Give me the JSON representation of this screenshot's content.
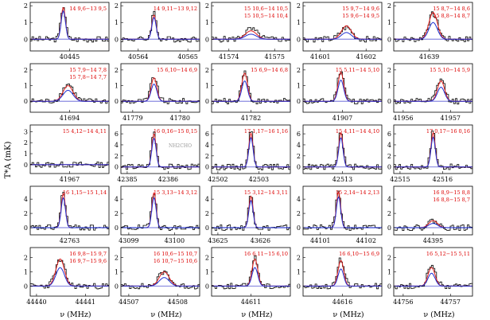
{
  "figure": {
    "ylabel": "T*A (mK)",
    "xlabel": "ν (MHz)"
  },
  "colors": {
    "observed": "#000000",
    "model_red": "#e02020",
    "model_blue": "#2030d0",
    "baseline": "#8a8ae0",
    "marker_gray": "#999999",
    "label_red": "#dd0000"
  },
  "chart_data": [
    {
      "row": 0,
      "col": 0,
      "type": "line",
      "title": "14 9,6−13 9,5",
      "ylim": [
        -0.7,
        2.2
      ],
      "yticks": [
        "0",
        "1",
        "2"
      ],
      "xticks": [
        {
          "text": "40445",
          "pos": 0.5
        }
      ],
      "peak": 0.42,
      "obs": 2.0,
      "red": 1.9,
      "blue": 1.7,
      "w": 0.03
    },
    {
      "row": 0,
      "col": 1,
      "type": "line",
      "title": "14 9,11−13 9,12",
      "ylim": [
        -0.7,
        2.2
      ],
      "yticks": [
        "0",
        "1",
        "2"
      ],
      "xticks": [
        {
          "text": "40564",
          "pos": 0.22
        },
        {
          "text": "40565",
          "pos": 0.85
        }
      ],
      "peak": 0.42,
      "obs": 1.6,
      "red": 1.45,
      "blue": 1.3,
      "w": 0.03
    },
    {
      "row": 0,
      "col": 2,
      "type": "line",
      "title": "15 10,6−14 10,5 / 15 10,5−14 10,4",
      "ylim": [
        -0.7,
        2.2
      ],
      "yticks": [
        "0",
        "1",
        "2"
      ],
      "xticks": [
        {
          "text": "41574",
          "pos": 0.22
        },
        {
          "text": "41575",
          "pos": 0.8
        }
      ],
      "peak": 0.5,
      "obs": 0.6,
      "red": 0.5,
      "blue": 0.3,
      "w": 0.08
    },
    {
      "row": 0,
      "col": 3,
      "type": "line",
      "title": "15 9,7−14 9,6 / 15 9,6−14 9,5",
      "ylim": [
        -0.7,
        2.2
      ],
      "yticks": [
        "0",
        "1",
        "2"
      ],
      "xticks": [
        {
          "text": "41601",
          "pos": 0.22
        },
        {
          "text": "41602",
          "pos": 0.8
        }
      ],
      "peak": 0.55,
      "obs": 0.7,
      "red": 0.8,
      "blue": 0.4,
      "w": 0.07
    },
    {
      "row": 0,
      "col": 4,
      "type": "line",
      "title": "15 8,7−14 8,6 / 15 8,8−14 8,7",
      "ylim": [
        -0.7,
        2.2
      ],
      "yticks": [
        "0",
        "1",
        "2"
      ],
      "xticks": [
        {
          "text": "41639",
          "pos": 0.45
        }
      ],
      "peak": 0.5,
      "obs": 1.5,
      "red": 1.6,
      "blue": 1.0,
      "w": 0.06
    },
    {
      "row": 1,
      "col": 0,
      "type": "line",
      "title": "15 7,9−14 7,8 / 15 7,8−14 7,7",
      "ylim": [
        -0.7,
        2.4
      ],
      "yticks": [
        "0",
        "1",
        "2"
      ],
      "xticks": [
        {
          "text": "41694",
          "pos": 0.5
        }
      ],
      "peak": 0.48,
      "obs": 1.1,
      "red": 1.0,
      "blue": 0.7,
      "w": 0.07
    },
    {
      "row": 1,
      "col": 1,
      "type": "line",
      "title": "15 6,10−14 6,9",
      "ylim": [
        -0.7,
        2.4
      ],
      "yticks": [
        "0",
        "1",
        "2"
      ],
      "xticks": [
        {
          "text": "41779",
          "pos": 0.15
        },
        {
          "text": "41780",
          "pos": 0.75
        }
      ],
      "peak": 0.42,
      "obs": 1.6,
      "red": 1.5,
      "blue": 1.1,
      "w": 0.04
    },
    {
      "row": 1,
      "col": 2,
      "type": "line",
      "title": "15 6,9−14 6,8",
      "ylim": [
        -0.7,
        2.4
      ],
      "yticks": [
        "0",
        "1",
        "2"
      ],
      "xticks": [
        {
          "text": "41782",
          "pos": 0.5
        }
      ],
      "peak": 0.42,
      "obs": 1.9,
      "red": 1.8,
      "blue": 1.3,
      "w": 0.04
    },
    {
      "row": 1,
      "col": 3,
      "type": "line",
      "title": "15 5,11−14 5,10",
      "ylim": [
        -0.7,
        2.4
      ],
      "yticks": [
        "0",
        "1",
        "2"
      ],
      "xticks": [
        {
          "text": "41907",
          "pos": 0.5
        }
      ],
      "peak": 0.48,
      "obs": 2.0,
      "red": 1.85,
      "blue": 1.35,
      "w": 0.04
    },
    {
      "row": 1,
      "col": 4,
      "type": "line",
      "title": "15 5,10−14 5,9",
      "ylim": [
        -0.7,
        2.4
      ],
      "yticks": [
        "0",
        "1",
        "2"
      ],
      "xticks": [
        {
          "text": "41956",
          "pos": 0.12
        },
        {
          "text": "41957",
          "pos": 0.72
        }
      ],
      "peak": 0.6,
      "obs": 1.4,
      "red": 1.3,
      "blue": 0.9,
      "w": 0.05
    },
    {
      "row": 2,
      "col": 0,
      "type": "line",
      "title": "15 4,12−14 4,11",
      "ylim": [
        -0.8,
        3.6
      ],
      "yticks": [
        "0",
        "1",
        "2",
        "3"
      ],
      "xticks": [
        {
          "text": "41967",
          "pos": 0.5
        }
      ],
      "peak": 0.5,
      "obs": 0.0,
      "red": 0.0,
      "blue": 0.0,
      "w": 0.04
    },
    {
      "row": 2,
      "col": 1,
      "type": "line",
      "title": "16 0,16−15 0,15",
      "annotation": "NH2CHO",
      "ylim": [
        -1.2,
        7.6
      ],
      "yticks": [
        "0",
        "2",
        "4",
        "6"
      ],
      "xticks": [
        {
          "text": "42385",
          "pos": 0.08
        },
        {
          "text": "42386",
          "pos": 0.6
        }
      ],
      "peak": 0.42,
      "obs": 6.3,
      "red": 6.0,
      "blue": 5.2,
      "w": 0.03
    },
    {
      "row": 2,
      "col": 2,
      "type": "line",
      "title": "17 1,17−16 1,16",
      "ylim": [
        -1.2,
        7.6
      ],
      "yticks": [
        "0",
        "2",
        "4",
        "6"
      ],
      "xticks": [
        {
          "text": "42502",
          "pos": 0.08
        },
        {
          "text": "42503",
          "pos": 0.6
        }
      ],
      "peak": 0.5,
      "obs": 6.5,
      "red": 6.1,
      "blue": 5.3,
      "w": 0.03
    },
    {
      "row": 2,
      "col": 3,
      "type": "line",
      "title": "15 4,11−14 4,10",
      "ylim": [
        -1.2,
        7.6
      ],
      "yticks": [
        "0",
        "2",
        "4",
        "6"
      ],
      "xticks": [
        {
          "text": "42513",
          "pos": 0.5
        }
      ],
      "peak": 0.48,
      "obs": 6.5,
      "red": 6.2,
      "blue": 5.3,
      "w": 0.03
    },
    {
      "row": 2,
      "col": 4,
      "type": "line",
      "title": "17 0,17−16 0,16",
      "ylim": [
        -1.2,
        7.6
      ],
      "yticks": [
        "0",
        "2",
        "4",
        "6"
      ],
      "xticks": [
        {
          "text": "42515",
          "pos": 0.08
        },
        {
          "text": "42516",
          "pos": 0.62
        }
      ],
      "peak": 0.5,
      "obs": 6.6,
      "red": 6.2,
      "blue": 5.4,
      "w": 0.03
    },
    {
      "row": 3,
      "col": 0,
      "type": "line",
      "title": "16 1,15−15 1,14",
      "ylim": [
        -1.0,
        5.8
      ],
      "yticks": [
        "0",
        "2",
        "4"
      ],
      "xticks": [
        {
          "text": "42763",
          "pos": 0.5
        }
      ],
      "peak": 0.42,
      "obs": 5.0,
      "red": 4.8,
      "blue": 4.2,
      "w": 0.03
    },
    {
      "row": 3,
      "col": 1,
      "type": "line",
      "title": "15 3,13−14 3,12",
      "ylim": [
        -1.0,
        5.8
      ],
      "yticks": [
        "0",
        "2",
        "4"
      ],
      "xticks": [
        {
          "text": "43099",
          "pos": 0.1
        },
        {
          "text": "43100",
          "pos": 0.68
        }
      ],
      "peak": 0.42,
      "obs": 5.1,
      "red": 4.9,
      "blue": 4.2,
      "w": 0.03
    },
    {
      "row": 3,
      "col": 2,
      "type": "line",
      "title": "15 3,12−14 3,11",
      "ylim": [
        -1.0,
        5.8
      ],
      "yticks": [
        "0",
        "2",
        "4"
      ],
      "xticks": [
        {
          "text": "43625",
          "pos": 0.08
        },
        {
          "text": "43626",
          "pos": 0.62
        }
      ],
      "peak": 0.5,
      "obs": 4.6,
      "red": 4.4,
      "blue": 3.8,
      "w": 0.03
    },
    {
      "row": 3,
      "col": 3,
      "type": "line",
      "title": "15 2,14−14 2,13",
      "ylim": [
        -1.0,
        5.8
      ],
      "yticks": [
        "0",
        "2",
        "4"
      ],
      "xticks": [
        {
          "text": "44101",
          "pos": 0.22
        },
        {
          "text": "44102",
          "pos": 0.8
        }
      ],
      "peak": 0.45,
      "obs": 5.1,
      "red": 5.0,
      "blue": 4.3,
      "w": 0.03
    },
    {
      "row": 3,
      "col": 4,
      "type": "line",
      "title": "16 8,9−15 8,8 / 16 8,8−15 8,7",
      "ylim": [
        -1.0,
        5.8
      ],
      "yticks": [
        "0",
        "2",
        "4"
      ],
      "xticks": [
        {
          "text": "44395",
          "pos": 0.5
        }
      ],
      "peak": 0.5,
      "obs": 1.0,
      "red": 1.0,
      "blue": 0.6,
      "w": 0.06
    },
    {
      "row": 4,
      "col": 0,
      "type": "line",
      "title": "16 9,8−15 9,7 / 16 9,7−15 9,6",
      "ylim": [
        -0.7,
        2.7
      ],
      "yticks": [
        "0",
        "1",
        "2"
      ],
      "xticks": [
        {
          "text": "44440",
          "pos": 0.08
        },
        {
          "text": "44441",
          "pos": 0.7
        }
      ],
      "peak": 0.38,
      "obs": 1.8,
      "red": 1.9,
      "blue": 1.3,
      "w": 0.06
    },
    {
      "row": 4,
      "col": 1,
      "type": "line",
      "title": "16 10,6−15 10,7 / 16 10,7−15 10,6",
      "ylim": [
        -0.7,
        2.7
      ],
      "yticks": [
        "0",
        "1",
        "2"
      ],
      "xticks": [
        {
          "text": "44507",
          "pos": 0.1
        },
        {
          "text": "44508",
          "pos": 0.72
        }
      ],
      "peak": 0.55,
      "obs": 1.0,
      "red": 1.0,
      "blue": 0.6,
      "w": 0.07
    },
    {
      "row": 4,
      "col": 2,
      "type": "line",
      "title": "16 6,11−15 6,10",
      "ylim": [
        -0.7,
        2.7
      ],
      "yticks": [
        "0",
        "1",
        "2"
      ],
      "xticks": [
        {
          "text": "44611",
          "pos": 0.5
        }
      ],
      "peak": 0.55,
      "obs": 2.0,
      "red": 1.9,
      "blue": 1.3,
      "w": 0.04
    },
    {
      "row": 4,
      "col": 3,
      "type": "line",
      "title": "16 6,10−15 6,9",
      "ylim": [
        -0.7,
        2.7
      ],
      "yticks": [
        "0",
        "1",
        "2"
      ],
      "xticks": [
        {
          "text": "44616",
          "pos": 0.5
        }
      ],
      "peak": 0.48,
      "obs": 1.9,
      "red": 1.8,
      "blue": 1.2,
      "w": 0.04
    },
    {
      "row": 4,
      "col": 4,
      "type": "line",
      "title": "16 5,12−15 5,11",
      "ylim": [
        -0.7,
        2.7
      ],
      "yticks": [
        "0",
        "1",
        "2"
      ],
      "xticks": [
        {
          "text": "44756",
          "pos": 0.12
        },
        {
          "text": "44757",
          "pos": 0.72
        }
      ],
      "peak": 0.48,
      "obs": 1.4,
      "red": 1.3,
      "blue": 0.9,
      "w": 0.05
    }
  ]
}
